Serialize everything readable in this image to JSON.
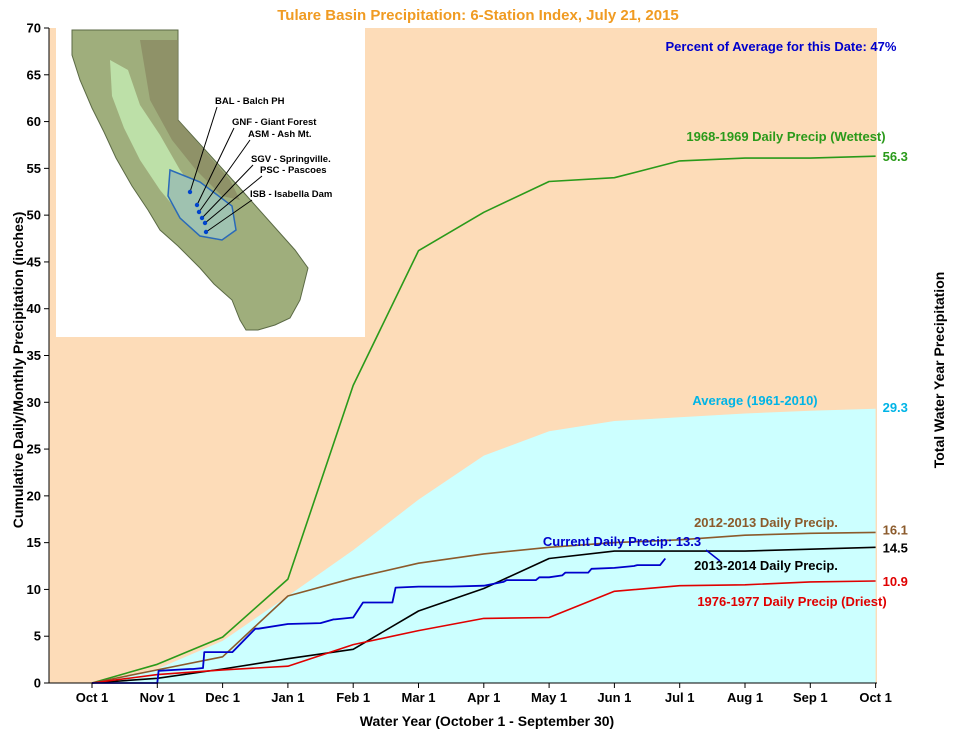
{
  "chart_data": {
    "type": "line",
    "title": "Tulare Basin Precipitation: 6-Station Index, July 21, 2015",
    "subtitle": "Percent of Average for this Date: 47%",
    "xlabel": "Water Year (October 1 - September 30)",
    "ylabel": "Cumulative Daily/Monthly Precipitation (inches)",
    "right_label": "Total Water Year Precipitation",
    "ylim": [
      0,
      70
    ],
    "yticks": [
      0,
      5,
      10,
      15,
      20,
      25,
      30,
      35,
      40,
      45,
      50,
      55,
      60,
      65,
      70
    ],
    "categories": [
      "Oct 1",
      "Nov 1",
      "Dec 1",
      "Jan 1",
      "Feb 1",
      "Mar 1",
      "Apr 1",
      "May 1",
      "Jun 1",
      "Jul 1",
      "Aug 1",
      "Sep 1",
      "Oct 1"
    ],
    "grid": false,
    "legend": "inline labels",
    "series": [
      {
        "name": "Average (1961-2010)",
        "style": "area",
        "color": "#00c8f0",
        "fill": "#ccffff",
        "x": [
          0,
          1,
          2,
          3,
          4,
          5,
          6,
          7,
          8,
          9,
          10,
          11,
          12
        ],
        "y": [
          0,
          1.5,
          4.5,
          9.3,
          14.2,
          19.6,
          24.3,
          26.9,
          28.0,
          28.4,
          28.8,
          29.1,
          29.3
        ],
        "end_value": "29.3"
      },
      {
        "name": "1968-1969 Daily Precip (Wettest)",
        "color": "#2a9a1a",
        "x": [
          0,
          1,
          2,
          3,
          4,
          5,
          6,
          7,
          8,
          9,
          10,
          11,
          12
        ],
        "y": [
          0,
          2.0,
          4.9,
          11.1,
          31.8,
          46.2,
          50.3,
          53.6,
          54.0,
          55.8,
          56.1,
          56.1,
          56.3
        ],
        "end_value": "56.3"
      },
      {
        "name": "2012-2013 Daily Precip.",
        "color": "#8b5a2b",
        "x": [
          0,
          1,
          2,
          3,
          4,
          5,
          6,
          7,
          8,
          9,
          10,
          11,
          12
        ],
        "y": [
          0,
          1.4,
          2.8,
          9.3,
          11.2,
          12.8,
          13.8,
          14.5,
          15.0,
          15.3,
          15.8,
          16.0,
          16.1
        ],
        "end_value": "16.1"
      },
      {
        "name": "2013-2014 Daily Precip.",
        "color": "#000000",
        "x": [
          0,
          1,
          2,
          3,
          4,
          5,
          6,
          7,
          8,
          9,
          10,
          11,
          12
        ],
        "y": [
          0,
          0.5,
          1.5,
          2.6,
          3.6,
          7.7,
          10.1,
          13.3,
          14.1,
          14.1,
          14.1,
          14.3,
          14.5
        ],
        "end_value": "14.5"
      },
      {
        "name": "1976-1977 Daily Precip (Driest)",
        "color": "#e00000",
        "x": [
          0,
          1,
          2,
          3,
          4,
          5,
          6,
          7,
          8,
          9,
          10,
          11,
          12
        ],
        "y": [
          0,
          0.9,
          1.4,
          1.8,
          4.1,
          5.6,
          6.9,
          7.0,
          9.8,
          10.4,
          10.5,
          10.8,
          10.9
        ],
        "end_value": "10.9"
      },
      {
        "name": "Current Daily Precip: 13.3",
        "style": "step",
        "color": "#0000cc",
        "x": [
          0,
          1,
          1.02,
          1.5,
          1.55,
          1.7,
          1.72,
          2.0,
          2.15,
          2.5,
          2.55,
          3.0,
          3.5,
          3.7,
          3.72,
          4.0,
          4.15,
          4.2,
          4.6,
          4.65,
          5.0,
          5.05,
          5.5,
          6.0,
          6.3,
          6.35,
          6.8,
          6.85,
          7.0,
          7.2,
          7.25,
          7.6,
          7.65,
          8.0,
          8.3,
          8.35,
          8.7,
          8.78
        ],
        "y": [
          0,
          0,
          1.3,
          1.5,
          1.5,
          1.6,
          3.3,
          3.3,
          3.3,
          5.8,
          5.8,
          6.3,
          6.4,
          6.8,
          6.8,
          7.0,
          8.6,
          8.6,
          8.6,
          10.2,
          10.3,
          10.3,
          10.3,
          10.4,
          10.8,
          11.0,
          11.0,
          11.3,
          11.3,
          11.5,
          11.8,
          11.8,
          12.2,
          12.3,
          12.5,
          12.6,
          12.6,
          13.3
        ]
      }
    ],
    "inset_map": {
      "stations": [
        "BAL - Balch PH",
        "GNF - Giant Forest",
        "ASM - Ash Mt.",
        "SGV - Springville.",
        "PSC - Pascoes",
        "ISB - Isabella Dam"
      ]
    },
    "background_colors": {
      "dry_season": "#fddcb8",
      "plot_white": "#ffffff"
    }
  }
}
